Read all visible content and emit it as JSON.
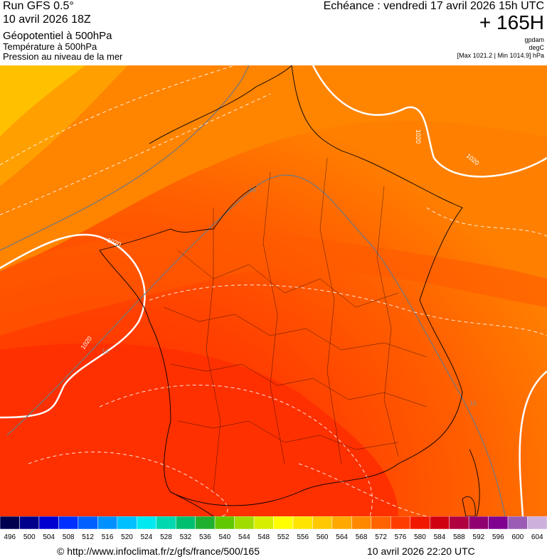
{
  "header": {
    "run": "Run GFS 0.5°",
    "date": "10 avril 2026 18Z",
    "field1": "Géopotentiel à 500hPa",
    "field2": "Température à 500hPa",
    "field3": "Pression au niveau de la mer",
    "echeance": "Echéance : vendredi 17 avril 2026 15h UTC",
    "hour": "+ 165H",
    "unit1": "gpdam",
    "unit2": "degC",
    "pressure_range": "[Max 1021.2 | Min 1014.9] hPa"
  },
  "map": {
    "contour_labels": [
      "1020",
      "1020",
      "1020",
      "1020",
      "16",
      "16",
      "16"
    ]
  },
  "legend": {
    "labels": [
      496,
      500,
      504,
      508,
      512,
      516,
      520,
      524,
      528,
      532,
      536,
      540,
      544,
      548,
      552,
      556,
      560,
      564,
      568,
      572,
      576,
      580,
      584,
      588,
      592,
      596,
      600,
      604
    ],
    "colors": [
      "#000050",
      "#00008c",
      "#0000d0",
      "#0030ff",
      "#0060ff",
      "#0090ff",
      "#00c0ff",
      "#00e8f0",
      "#00d8b0",
      "#00c070",
      "#20b030",
      "#60c800",
      "#a0dc00",
      "#d8ee00",
      "#ffff00",
      "#ffe400",
      "#ffc800",
      "#ffa800",
      "#ff8800",
      "#ff6400",
      "#ff3c00",
      "#f01800",
      "#d00010",
      "#b00040",
      "#900070",
      "#800090",
      "#9a5cb4",
      "#cdb0dc"
    ]
  },
  "footer": {
    "url": "© http://www.infoclimat.fr/z/gfs/france/500/165",
    "timestamp": "10 avril 2026 22:20 UTC"
  }
}
